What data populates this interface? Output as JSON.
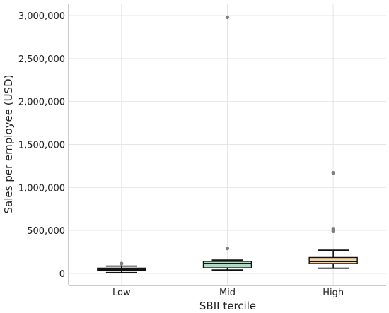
{
  "chart_data": {
    "type": "box",
    "xlabel": "SBII tercile",
    "ylabel": "Sales per employee (USD)",
    "ylim": [
      -140000,
      3140000
    ],
    "yticks": [
      0,
      500000,
      1000000,
      1500000,
      2000000,
      2500000,
      3000000
    ],
    "ytick_labels": [
      "0",
      "500,000",
      "1,000,000",
      "1,500,000",
      "2,000,000",
      "2,500,000",
      "3,000,000"
    ],
    "grid": true,
    "categories": [
      "Low",
      "Mid",
      "High"
    ],
    "boxes": [
      {
        "category": "Low",
        "whisker_low": 10000,
        "q1": 35000,
        "median": 48000,
        "q3": 62000,
        "whisker_high": 85000,
        "outliers": [
          115000
        ],
        "color": "#4d4d4d"
      },
      {
        "category": "Mid",
        "whisker_low": 40000,
        "q1": 65000,
        "median": 115000,
        "q3": 140000,
        "whisker_high": 155000,
        "outliers": [
          290000,
          2980000
        ],
        "color": "#a9dcc0"
      },
      {
        "category": "High",
        "whisker_low": 60000,
        "q1": 115000,
        "median": 140000,
        "q3": 185000,
        "whisker_high": 270000,
        "outliers": [
          490000,
          520000,
          1170000
        ],
        "color": "#f5d3a3"
      }
    ]
  }
}
